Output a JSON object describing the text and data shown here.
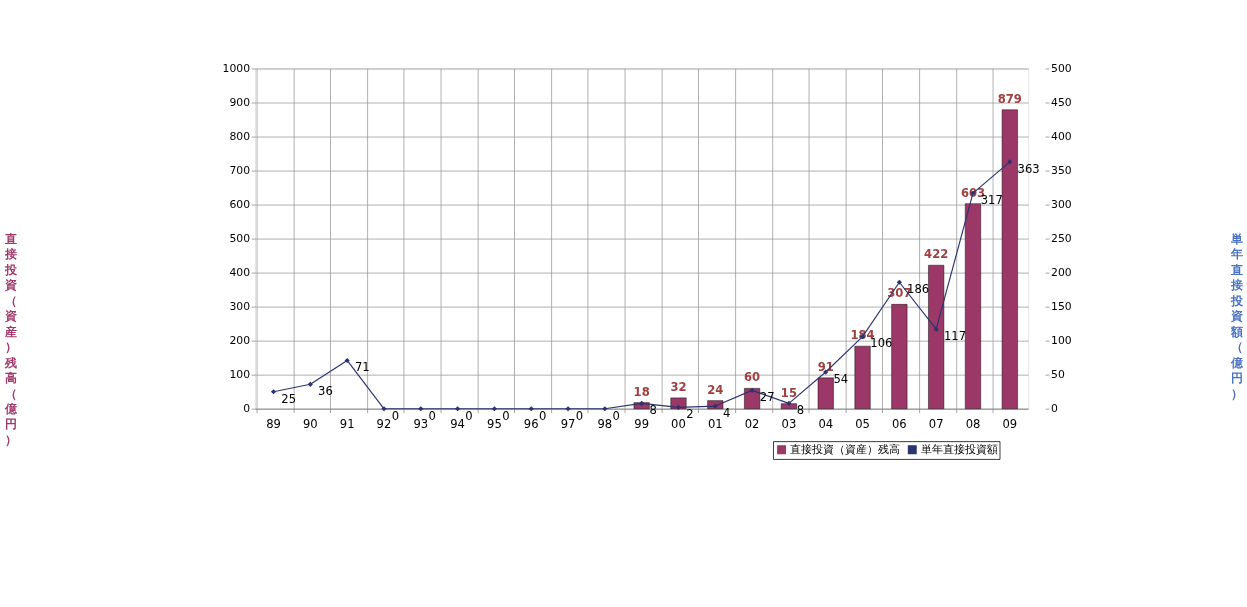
{
  "chart_data": {
    "type": "bar",
    "ylabel": "直接投資（資産）残高（億円）",
    "y2label": "単年直接投資額（億円）",
    "categories": [
      "89",
      "90",
      "91",
      "92",
      "93",
      "94",
      "95",
      "96",
      "97",
      "98",
      "99",
      "00",
      "01",
      "02",
      "03",
      "04",
      "05",
      "06",
      "07",
      "08",
      "09"
    ],
    "series": [
      {
        "name": "直接投資（資産）残高",
        "color": "#9b3868",
        "values": [
          null,
          null,
          null,
          null,
          null,
          null,
          null,
          null,
          null,
          null,
          18,
          32,
          24,
          60,
          15,
          91,
          184,
          307,
          422,
          603,
          879
        ]
      },
      {
        "name": "単年直接投資額",
        "type": "line",
        "axis": "y2",
        "color": "#2b3470",
        "marker": "diamond",
        "values": [
          25,
          36,
          71,
          0,
          0,
          0,
          0,
          0,
          0,
          0,
          8,
          2,
          4,
          27,
          8,
          54,
          106,
          186,
          117,
          317,
          363
        ]
      }
    ],
    "ylim": [
      0,
      1000
    ],
    "yticks": [
      0,
      100,
      200,
      300,
      400,
      500,
      600,
      700,
      800,
      900,
      1000
    ],
    "y2lim": [
      0,
      500
    ],
    "y2ticks": [
      0,
      50,
      100,
      150,
      200,
      250,
      300,
      350,
      400,
      450,
      500
    ],
    "data_labels": true,
    "grid": true,
    "legend": "bottom right"
  }
}
